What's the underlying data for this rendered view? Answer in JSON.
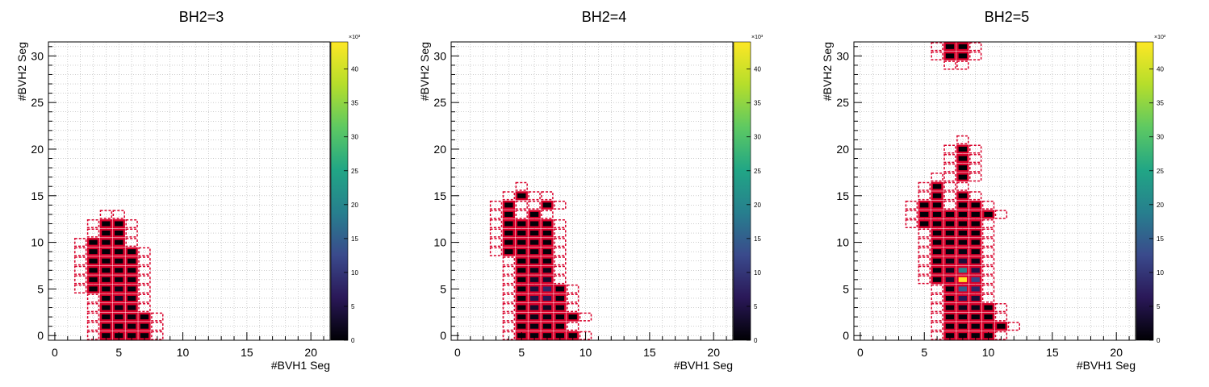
{
  "chart_data": [
    {
      "type": "heatmap",
      "title": "BH2=3",
      "xlabel": "#BVH1 Seg",
      "ylabel": "#BVH2 Seg",
      "xlim": [
        -0.5,
        21.5
      ],
      "ylim": [
        -0.5,
        31.5
      ],
      "x_ticks": [
        "0",
        "5",
        "10",
        "15",
        "20"
      ],
      "y_ticks": [
        "0",
        "5",
        "10",
        "15",
        "20",
        "25",
        "30"
      ],
      "grid": true,
      "colorbar": {
        "exponent_label": "×10³",
        "ticks": [
          "0",
          "5",
          "10",
          "15",
          "20",
          "25",
          "30",
          "35",
          "40"
        ],
        "range": [
          0,
          44
        ]
      },
      "cells": [
        [
          4,
          0,
          0.3
        ],
        [
          5,
          0,
          0.4
        ],
        [
          6,
          0,
          0.4
        ],
        [
          7,
          0,
          0.2
        ],
        [
          4,
          1,
          0.4
        ],
        [
          5,
          1,
          0.6
        ],
        [
          6,
          1,
          0.6
        ],
        [
          7,
          1,
          0.3
        ],
        [
          4,
          2,
          0.5
        ],
        [
          5,
          2,
          0.8
        ],
        [
          6,
          2,
          0.7
        ],
        [
          7,
          2,
          0.3
        ],
        [
          4,
          3,
          0.5
        ],
        [
          5,
          3,
          1.2
        ],
        [
          6,
          3,
          0.8
        ],
        [
          4,
          4,
          0.5
        ],
        [
          5,
          4,
          2.5
        ],
        [
          6,
          4,
          1.0
        ],
        [
          3,
          5,
          0.3
        ],
        [
          4,
          5,
          0.5
        ],
        [
          5,
          5,
          1.5
        ],
        [
          6,
          5,
          0.8
        ],
        [
          3,
          6,
          0.3
        ],
        [
          4,
          6,
          0.6
        ],
        [
          5,
          6,
          0.8
        ],
        [
          6,
          6,
          0.6
        ],
        [
          3,
          7,
          0.3
        ],
        [
          4,
          7,
          0.5
        ],
        [
          5,
          7,
          0.6
        ],
        [
          6,
          7,
          0.5
        ],
        [
          3,
          8,
          0.3
        ],
        [
          4,
          8,
          0.4
        ],
        [
          5,
          8,
          0.5
        ],
        [
          6,
          8,
          0.4
        ],
        [
          3,
          9,
          0.3
        ],
        [
          4,
          9,
          0.3
        ],
        [
          5,
          9,
          0.3
        ],
        [
          6,
          9,
          0.3
        ],
        [
          3,
          10,
          0.2
        ],
        [
          4,
          10,
          0.3
        ],
        [
          5,
          10,
          0.3
        ],
        [
          4,
          11,
          0.2
        ],
        [
          5,
          11,
          0.2
        ],
        [
          4,
          12,
          0.2
        ],
        [
          5,
          12,
          0.2
        ]
      ]
    },
    {
      "type": "heatmap",
      "title": "BH2=4",
      "xlabel": "#BVH1 Seg",
      "ylabel": "#BVH2 Seg",
      "xlim": [
        -0.5,
        21.5
      ],
      "ylim": [
        -0.5,
        31.5
      ],
      "x_ticks": [
        "0",
        "5",
        "10",
        "15",
        "20"
      ],
      "y_ticks": [
        "0",
        "5",
        "10",
        "15",
        "20",
        "25",
        "30"
      ],
      "grid": true,
      "colorbar": {
        "exponent_label": "×10³",
        "ticks": [
          "0",
          "5",
          "10",
          "15",
          "20",
          "25",
          "30",
          "35",
          "40"
        ],
        "range": [
          0,
          44
        ]
      },
      "cells": [
        [
          5,
          0,
          0.3
        ],
        [
          6,
          0,
          0.5
        ],
        [
          7,
          0,
          0.4
        ],
        [
          8,
          0,
          0.3
        ],
        [
          9,
          0,
          0.2
        ],
        [
          5,
          1,
          0.4
        ],
        [
          6,
          1,
          0.8
        ],
        [
          7,
          1,
          0.6
        ],
        [
          8,
          1,
          0.4
        ],
        [
          9,
          2,
          0.2
        ],
        [
          5,
          2,
          0.5
        ],
        [
          6,
          2,
          1.5
        ],
        [
          7,
          2,
          1.2
        ],
        [
          8,
          2,
          0.5
        ],
        [
          5,
          3,
          0.5
        ],
        [
          6,
          3,
          3.0
        ],
        [
          7,
          3,
          2.5
        ],
        [
          8,
          3,
          0.8
        ],
        [
          5,
          4,
          0.5
        ],
        [
          6,
          4,
          5.0
        ],
        [
          7,
          4,
          6.0
        ],
        [
          8,
          4,
          1.0
        ],
        [
          5,
          5,
          0.5
        ],
        [
          6,
          5,
          4.0
        ],
        [
          7,
          5,
          8.0
        ],
        [
          8,
          5,
          0.8
        ],
        [
          5,
          6,
          0.4
        ],
        [
          6,
          6,
          2.5
        ],
        [
          7,
          6,
          3.0
        ],
        [
          5,
          7,
          0.4
        ],
        [
          6,
          7,
          1.5
        ],
        [
          7,
          7,
          1.5
        ],
        [
          5,
          8,
          0.3
        ],
        [
          6,
          8,
          0.8
        ],
        [
          7,
          8,
          0.6
        ],
        [
          4,
          9,
          0.3
        ],
        [
          5,
          9,
          0.4
        ],
        [
          6,
          9,
          0.5
        ],
        [
          7,
          9,
          0.4
        ],
        [
          4,
          10,
          0.3
        ],
        [
          5,
          10,
          0.4
        ],
        [
          6,
          10,
          0.4
        ],
        [
          7,
          10,
          0.3
        ],
        [
          4,
          11,
          0.2
        ],
        [
          5,
          11,
          0.3
        ],
        [
          6,
          11,
          0.3
        ],
        [
          7,
          11,
          0.3
        ],
        [
          4,
          12,
          0.2
        ],
        [
          5,
          12,
          0.3
        ],
        [
          6,
          12,
          0.3
        ],
        [
          7,
          12,
          0.2
        ],
        [
          4,
          13,
          0.2
        ],
        [
          6,
          13,
          0.2
        ],
        [
          4,
          14,
          0.2
        ],
        [
          7,
          14,
          0.2
        ],
        [
          5,
          15,
          0.2
        ]
      ]
    },
    {
      "type": "heatmap",
      "title": "BH2=5",
      "xlabel": "#BVH1 Seg",
      "ylabel": "#BVH2 Seg",
      "xlim": [
        -0.5,
        21.5
      ],
      "ylim": [
        -0.5,
        31.5
      ],
      "x_ticks": [
        "0",
        "5",
        "10",
        "15",
        "20"
      ],
      "y_ticks": [
        "0",
        "5",
        "10",
        "15",
        "20",
        "25",
        "30"
      ],
      "grid": true,
      "colorbar": {
        "exponent_label": "×10³",
        "ticks": [
          "0",
          "5",
          "10",
          "15",
          "20",
          "25",
          "30",
          "35",
          "40"
        ],
        "range": [
          0,
          44
        ]
      },
      "cells": [
        [
          7,
          0,
          0.3
        ],
        [
          8,
          0,
          0.4
        ],
        [
          9,
          0,
          0.4
        ],
        [
          10,
          0,
          0.3
        ],
        [
          11,
          1,
          0.2
        ],
        [
          7,
          1,
          0.4
        ],
        [
          8,
          1,
          0.6
        ],
        [
          9,
          1,
          0.5
        ],
        [
          10,
          1,
          0.3
        ],
        [
          7,
          2,
          0.4
        ],
        [
          8,
          2,
          0.8
        ],
        [
          9,
          2,
          0.7
        ],
        [
          10,
          2,
          0.3
        ],
        [
          7,
          3,
          0.5
        ],
        [
          8,
          3,
          2.0
        ],
        [
          9,
          3,
          1.5
        ],
        [
          10,
          3,
          0.4
        ],
        [
          7,
          4,
          0.6
        ],
        [
          8,
          4,
          6.0
        ],
        [
          9,
          4,
          4.0
        ],
        [
          7,
          5,
          0.8
        ],
        [
          8,
          5,
          15.0
        ],
        [
          9,
          5,
          8.0
        ],
        [
          6,
          6,
          0.5
        ],
        [
          7,
          6,
          3.0
        ],
        [
          8,
          6,
          44.0
        ],
        [
          9,
          6,
          12.0
        ],
        [
          6,
          7,
          0.5
        ],
        [
          7,
          7,
          2.0
        ],
        [
          8,
          7,
          20.0
        ],
        [
          9,
          7,
          5.0
        ],
        [
          6,
          8,
          0.4
        ],
        [
          7,
          8,
          1.5
        ],
        [
          8,
          8,
          4.0
        ],
        [
          9,
          8,
          1.5
        ],
        [
          6,
          9,
          0.3
        ],
        [
          7,
          9,
          0.8
        ],
        [
          8,
          9,
          1.2
        ],
        [
          9,
          9,
          0.5
        ],
        [
          6,
          10,
          0.3
        ],
        [
          7,
          10,
          0.5
        ],
        [
          8,
          10,
          0.6
        ],
        [
          9,
          10,
          0.4
        ],
        [
          6,
          11,
          0.3
        ],
        [
          7,
          11,
          0.4
        ],
        [
          8,
          11,
          0.5
        ],
        [
          9,
          11,
          0.3
        ],
        [
          5,
          12,
          0.2
        ],
        [
          6,
          12,
          0.3
        ],
        [
          7,
          12,
          0.3
        ],
        [
          8,
          12,
          0.4
        ],
        [
          9,
          12,
          0.3
        ],
        [
          5,
          13,
          0.2
        ],
        [
          6,
          13,
          0.3
        ],
        [
          7,
          13,
          0.3
        ],
        [
          8,
          13,
          0.3
        ],
        [
          9,
          13,
          0.2
        ],
        [
          10,
          13,
          0.2
        ],
        [
          5,
          14,
          0.2
        ],
        [
          6,
          14,
          0.2
        ],
        [
          8,
          14,
          0.3
        ],
        [
          9,
          14,
          0.2
        ],
        [
          6,
          15,
          0.2
        ],
        [
          8,
          15,
          0.2
        ],
        [
          6,
          16,
          0.2
        ],
        [
          8,
          17,
          0.2
        ],
        [
          8,
          18,
          0.2
        ],
        [
          8,
          19,
          0.2
        ],
        [
          8,
          20,
          0.2
        ],
        [
          7,
          30,
          0.2
        ],
        [
          8,
          30,
          0.2
        ],
        [
          7,
          31,
          0.2
        ],
        [
          8,
          31,
          0.2
        ]
      ]
    }
  ],
  "colors": {
    "cell_stroke": "#d8002a",
    "outline_dash": "#d8002a",
    "grid": "#b0b0b0",
    "colormap": [
      "#000004",
      "#2a1858",
      "#3a4a8c",
      "#277f8e",
      "#21a685",
      "#5ec962",
      "#b5de2b",
      "#fde725"
    ]
  }
}
